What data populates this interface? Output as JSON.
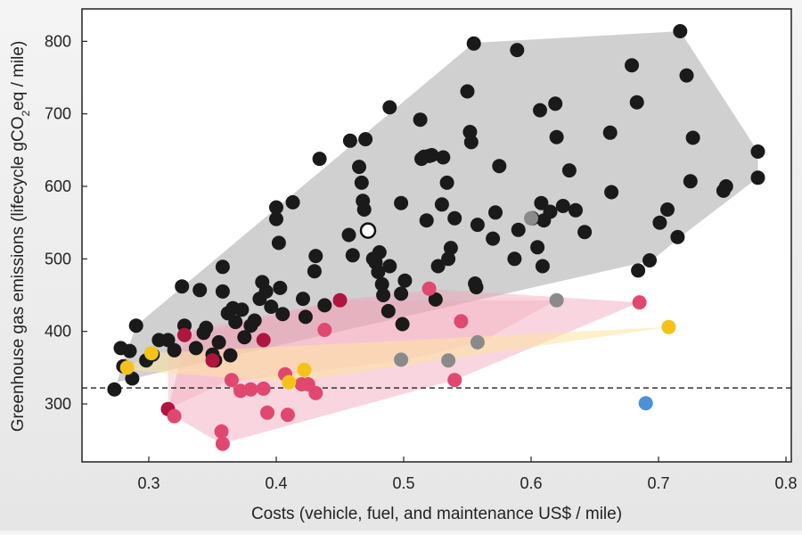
{
  "chart_data": {
    "type": "scatter",
    "title": "",
    "xlabel": "Costs (vehicle, fuel, and maintenance US$ / mile)",
    "ylabel_parts": [
      "Greenhouse gas emissions (lifecycle gCO",
      "2",
      "eq / mile)"
    ],
    "xlim": [
      0.25,
      0.8
    ],
    "ylim": [
      220,
      840
    ],
    "xticks": [
      0.3,
      0.4,
      0.5,
      0.6,
      0.7,
      0.8
    ],
    "xtick_labels": [
      "0.3",
      "0.4",
      "0.5",
      "0.6",
      "0.7",
      "0.8"
    ],
    "yticks": [
      300,
      400,
      500,
      600,
      700,
      800
    ],
    "ytick_labels": [
      "300",
      "400",
      "500",
      "600",
      "700",
      "800"
    ],
    "reference_line": {
      "y": 322,
      "style": "dashed"
    },
    "grid": false,
    "colors": {
      "black": "#1a1a1a",
      "gray": "#8a8a8a",
      "crimson": "#b0153f",
      "pink": "#e04870",
      "yellow": "#f5c21b",
      "blue": "#4a90d9",
      "hull_gray": "#a9a9a9",
      "hull_pink": "#f2a4b8",
      "hull_yellow": "#fde3a0"
    },
    "hulls": [
      {
        "color": "hull_gray",
        "opacity": 0.55,
        "points": [
          [
            0.273,
            320
          ],
          [
            0.29,
            408
          ],
          [
            0.555,
            798
          ],
          [
            0.717,
            814
          ],
          [
            0.778,
            648
          ],
          [
            0.778,
            612
          ],
          [
            0.717,
            530
          ],
          [
            0.695,
            498
          ],
          [
            0.275,
            330
          ]
        ]
      },
      {
        "color": "hull_pink",
        "opacity": 0.45,
        "points": [
          [
            0.315,
            293
          ],
          [
            0.33,
            395
          ],
          [
            0.45,
            443
          ],
          [
            0.525,
            458
          ],
          [
            0.685,
            440
          ],
          [
            0.54,
            333
          ],
          [
            0.357,
            245
          ],
          [
            0.32,
            283
          ]
        ]
      },
      {
        "color": "hull_pink",
        "opacity": 0.35,
        "points": [
          [
            0.315,
            293
          ],
          [
            0.315,
            395
          ],
          [
            0.45,
            443
          ],
          [
            0.62,
            443
          ],
          [
            0.56,
            385
          ],
          [
            0.5,
            360
          ],
          [
            0.36,
            330
          ]
        ]
      },
      {
        "color": "hull_yellow",
        "opacity": 0.55,
        "points": [
          [
            0.283,
            350
          ],
          [
            0.302,
            370
          ],
          [
            0.708,
            406
          ],
          [
            0.41,
            330
          ],
          [
            0.283,
            347
          ]
        ]
      }
    ],
    "series": [
      {
        "color": "black",
        "points": [
          [
            0.273,
            320
          ],
          [
            0.278,
            377
          ],
          [
            0.28,
            352
          ],
          [
            0.285,
            373
          ],
          [
            0.287,
            335
          ],
          [
            0.29,
            408
          ],
          [
            0.298,
            360
          ],
          [
            0.303,
            368
          ],
          [
            0.308,
            388
          ],
          [
            0.315,
            388
          ],
          [
            0.32,
            374
          ],
          [
            0.326,
            462
          ],
          [
            0.328,
            408
          ],
          [
            0.337,
            377
          ],
          [
            0.34,
            457
          ],
          [
            0.343,
            398
          ],
          [
            0.345,
            405
          ],
          [
            0.35,
            368
          ],
          [
            0.352,
            360
          ],
          [
            0.355,
            385
          ],
          [
            0.358,
            489
          ],
          [
            0.358,
            455
          ],
          [
            0.362,
            425
          ],
          [
            0.364,
            367
          ],
          [
            0.366,
            432
          ],
          [
            0.368,
            413
          ],
          [
            0.373,
            430
          ],
          [
            0.375,
            392
          ],
          [
            0.38,
            408
          ],
          [
            0.383,
            415
          ],
          [
            0.387,
            445
          ],
          [
            0.389,
            468
          ],
          [
            0.392,
            455
          ],
          [
            0.396,
            434
          ],
          [
            0.4,
            555
          ],
          [
            0.4,
            571
          ],
          [
            0.402,
            522
          ],
          [
            0.403,
            460
          ],
          [
            0.405,
            424
          ],
          [
            0.413,
            578
          ],
          [
            0.421,
            445
          ],
          [
            0.423,
            420
          ],
          [
            0.43,
            483
          ],
          [
            0.431,
            504
          ],
          [
            0.434,
            638
          ],
          [
            0.438,
            436
          ],
          [
            0.457,
            533
          ],
          [
            0.458,
            663
          ],
          [
            0.46,
            505
          ],
          [
            0.465,
            627
          ],
          [
            0.467,
            605
          ],
          [
            0.468,
            580
          ],
          [
            0.469,
            568
          ],
          [
            0.47,
            665
          ],
          [
            0.476,
            500
          ],
          [
            0.478,
            495
          ],
          [
            0.48,
            482
          ],
          [
            0.481,
            509
          ],
          [
            0.483,
            465
          ],
          [
            0.484,
            450
          ],
          [
            0.488,
            428
          ],
          [
            0.489,
            490
          ],
          [
            0.489,
            709
          ],
          [
            0.498,
            577
          ],
          [
            0.498,
            452
          ],
          [
            0.499,
            410
          ],
          [
            0.501,
            470
          ],
          [
            0.513,
            692
          ],
          [
            0.514,
            638
          ],
          [
            0.516,
            641
          ],
          [
            0.518,
            553
          ],
          [
            0.52,
            642
          ],
          [
            0.522,
            643
          ],
          [
            0.525,
            444
          ],
          [
            0.527,
            490
          ],
          [
            0.53,
            575
          ],
          [
            0.531,
            640
          ],
          [
            0.534,
            605
          ],
          [
            0.535,
            500
          ],
          [
            0.537,
            515
          ],
          [
            0.54,
            556
          ],
          [
            0.55,
            731
          ],
          [
            0.552,
            675
          ],
          [
            0.553,
            661
          ],
          [
            0.555,
            797
          ],
          [
            0.556,
            466
          ],
          [
            0.557,
            461
          ],
          [
            0.558,
            547
          ],
          [
            0.57,
            528
          ],
          [
            0.572,
            564
          ],
          [
            0.575,
            628
          ],
          [
            0.587,
            500
          ],
          [
            0.589,
            788
          ],
          [
            0.59,
            540
          ],
          [
            0.601,
            556
          ],
          [
            0.605,
            516
          ],
          [
            0.607,
            705
          ],
          [
            0.608,
            577
          ],
          [
            0.609,
            490
          ],
          [
            0.61,
            553
          ],
          [
            0.615,
            565
          ],
          [
            0.619,
            714
          ],
          [
            0.62,
            668
          ],
          [
            0.625,
            573
          ],
          [
            0.63,
            622
          ],
          [
            0.635,
            567
          ],
          [
            0.642,
            537
          ],
          [
            0.662,
            674
          ],
          [
            0.663,
            592
          ],
          [
            0.679,
            767
          ],
          [
            0.683,
            716
          ],
          [
            0.684,
            484
          ],
          [
            0.693,
            498
          ],
          [
            0.701,
            550
          ],
          [
            0.707,
            568
          ],
          [
            0.715,
            530
          ],
          [
            0.717,
            814
          ],
          [
            0.722,
            753
          ],
          [
            0.725,
            607
          ],
          [
            0.727,
            667
          ],
          [
            0.751,
            594
          ],
          [
            0.753,
            600
          ],
          [
            0.778,
            648
          ],
          [
            0.778,
            612
          ]
        ]
      },
      {
        "color": "gray",
        "points": [
          [
            0.498,
            361
          ],
          [
            0.535,
            360
          ],
          [
            0.558,
            385
          ],
          [
            0.6,
            556
          ],
          [
            0.62,
            443
          ]
        ]
      },
      {
        "color": "crimson",
        "points": [
          [
            0.315,
            293
          ],
          [
            0.328,
            395
          ],
          [
            0.35,
            360
          ],
          [
            0.39,
            388
          ],
          [
            0.45,
            443
          ]
        ]
      },
      {
        "color": "pink",
        "points": [
          [
            0.32,
            283
          ],
          [
            0.357,
            262
          ],
          [
            0.358,
            245
          ],
          [
            0.365,
            333
          ],
          [
            0.372,
            318
          ],
          [
            0.38,
            320
          ],
          [
            0.39,
            321
          ],
          [
            0.393,
            288
          ],
          [
            0.407,
            341
          ],
          [
            0.409,
            285
          ],
          [
            0.42,
            327
          ],
          [
            0.425,
            327
          ],
          [
            0.431,
            315
          ],
          [
            0.438,
            402
          ],
          [
            0.52,
            459
          ],
          [
            0.54,
            333
          ],
          [
            0.545,
            414
          ],
          [
            0.685,
            440
          ]
        ]
      },
      {
        "color": "yellow",
        "points": [
          [
            0.283,
            350
          ],
          [
            0.302,
            370
          ],
          [
            0.41,
            330
          ],
          [
            0.422,
            347
          ],
          [
            0.708,
            406
          ]
        ]
      },
      {
        "color": "blue",
        "points": [
          [
            0.69,
            301
          ]
        ]
      },
      {
        "color": "white",
        "points": [
          [
            0.472,
            539
          ]
        ]
      }
    ]
  }
}
